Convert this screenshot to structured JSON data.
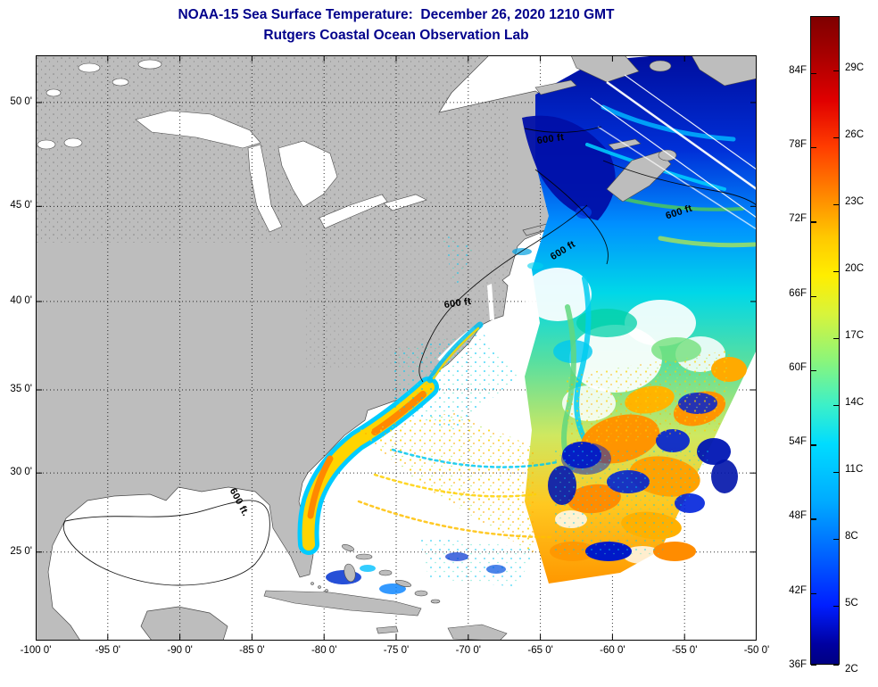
{
  "chart_data": {
    "type": "heatmap",
    "title": "NOAA-15 Sea Surface Temperature:  December 26, 2020 1210 GMT",
    "subtitle": "Rutgers Coastal Ocean Observation Lab",
    "projection": "mercator",
    "xlim": [
      -100,
      -50
    ],
    "ylim": [
      19.4,
      52.1
    ],
    "grid": {
      "style": "dotted",
      "color": "#000000"
    },
    "x_axis": {
      "ticks": [
        {
          "value": -100,
          "label": "-100 0'"
        },
        {
          "value": -95,
          "label": "-95 0'"
        },
        {
          "value": -90,
          "label": "-90 0'"
        },
        {
          "value": -85,
          "label": "-85 0'"
        },
        {
          "value": -80,
          "label": "-80 0'"
        },
        {
          "value": -75,
          "label": "-75 0'"
        },
        {
          "value": -70,
          "label": "-70 0'"
        },
        {
          "value": -65,
          "label": "-65 0'"
        },
        {
          "value": -60,
          "label": "-60 0'"
        },
        {
          "value": -55,
          "label": "-55 0'"
        },
        {
          "value": -50,
          "label": "-50 0'"
        }
      ]
    },
    "y_axis": {
      "ticks": [
        {
          "value": 25,
          "label": "25 0'"
        },
        {
          "value": 30,
          "label": "30 0'"
        },
        {
          "value": 35,
          "label": "35 0'"
        },
        {
          "value": 40,
          "label": "40 0'"
        },
        {
          "value": 45,
          "label": "45 0'"
        },
        {
          "value": 50,
          "label": "50 0'"
        }
      ]
    },
    "colorbar": {
      "orientation": "vertical",
      "colormap": "jet",
      "range_c": [
        2.3,
        31.4
      ],
      "left_ticks": [
        {
          "c": 2.22,
          "label": "36F"
        },
        {
          "c": 5.56,
          "label": "42F"
        },
        {
          "c": 8.89,
          "label": "48F"
        },
        {
          "c": 12.22,
          "label": "54F"
        },
        {
          "c": 15.56,
          "label": "60F"
        },
        {
          "c": 18.89,
          "label": "66F"
        },
        {
          "c": 22.22,
          "label": "72F"
        },
        {
          "c": 25.56,
          "label": "78F"
        },
        {
          "c": 28.89,
          "label": "84F"
        }
      ],
      "right_ticks": [
        {
          "c": 2,
          "label": "2C"
        },
        {
          "c": 5,
          "label": "5C"
        },
        {
          "c": 8,
          "label": "8C"
        },
        {
          "c": 11,
          "label": "11C"
        },
        {
          "c": 14,
          "label": "14C"
        },
        {
          "c": 17,
          "label": "17C"
        },
        {
          "c": 20,
          "label": "20C"
        },
        {
          "c": 23,
          "label": "23C"
        },
        {
          "c": 26,
          "label": "26C"
        },
        {
          "c": 29,
          "label": "29C"
        }
      ]
    },
    "annotations": [
      {
        "text": "600 ft",
        "lon": -64.3,
        "lat": 48.3,
        "rot": -8
      },
      {
        "text": "600 ft",
        "lon": -55.4,
        "lat": 44.7,
        "rot": -18
      },
      {
        "text": "600 ft",
        "lon": -63.4,
        "lat": 42.7,
        "rot": -32
      },
      {
        "text": "600 ft",
        "lon": -70.7,
        "lat": 39.9,
        "rot": -8
      },
      {
        "text": "600 ft.",
        "lon": -85.9,
        "lat": 28.2,
        "rot": 62
      }
    ],
    "map": {
      "land_color": "#bdbdbd",
      "no_data_color": "#ffffff"
    }
  },
  "colors": {
    "title": "#00008b",
    "land": "#bdbdbd",
    "axis": "#000000"
  }
}
